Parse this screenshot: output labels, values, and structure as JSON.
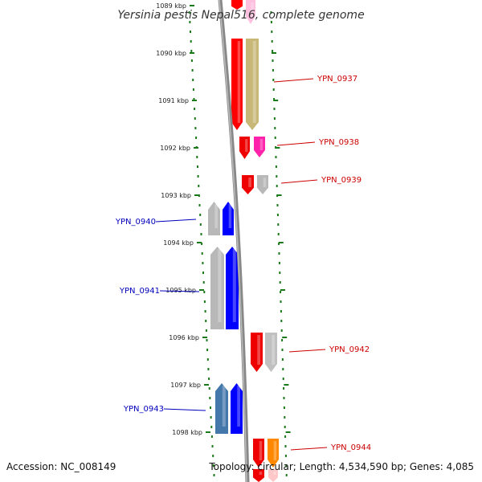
{
  "title": "Yersinia pestis Nepal516, complete genome",
  "footer": {
    "accession": "Accession: NC_008149",
    "topology": "Topology: circular; Length: 4,534,590 bp; Genes: 4,085"
  },
  "colors": {
    "backbone": "#888888",
    "ticks": "#1a7a1a",
    "forward_labels": "#cc0000",
    "reverse_labels": "#0000bb"
  },
  "ticks": [
    {
      "label": "1089 kbp",
      "faded": true
    },
    {
      "label": "1090 kbp"
    },
    {
      "label": "1091 kbp"
    },
    {
      "label": "1092 kbp"
    },
    {
      "label": "1093 kbp"
    },
    {
      "label": "1094 kbp"
    },
    {
      "label": "1095 kbp"
    },
    {
      "label": "1096 kbp"
    },
    {
      "label": "1097 kbp"
    },
    {
      "label": "1098 kbp"
    }
  ],
  "genes": [
    {
      "id": "YPN_0937",
      "strand": "+",
      "labeled": true,
      "colors": [
        "#ff0000",
        "#c8b878"
      ]
    },
    {
      "id": "YPN_0938",
      "strand": "+",
      "labeled": true,
      "colors": [
        "#ee0000",
        "#ff22aa"
      ]
    },
    {
      "id": "YPN_0939",
      "strand": "+",
      "labeled": true,
      "colors": [
        "#ee0000",
        "#b8b8b8"
      ]
    },
    {
      "id": "YPN_0940",
      "strand": "-",
      "labeled": true,
      "colors": [
        "#b8b8b8",
        "#0000ff"
      ]
    },
    {
      "id": "YPN_0941",
      "strand": "-",
      "labeled": true,
      "colors": [
        "#b8b8b8",
        "#0000ff"
      ]
    },
    {
      "id": "YPN_0942",
      "strand": "+",
      "labeled": true,
      "colors": [
        "#ee0000",
        "#c0c0c0"
      ]
    },
    {
      "id": "YPN_0943",
      "strand": "-",
      "labeled": true,
      "colors": [
        "#4477aa",
        "#0000ff"
      ]
    },
    {
      "id": "YPN_0944",
      "strand": "+",
      "labeled": true,
      "colors": [
        "#ee0000",
        "#ff8800"
      ]
    },
    {
      "id": "gene-top-partial",
      "strand": "+",
      "labeled": false,
      "colors": [
        "#ff0000",
        "#ffc0e0"
      ]
    },
    {
      "id": "gene-bottom-partial",
      "strand": "+",
      "labeled": false,
      "colors": [
        "#ee0000",
        "#ffc8c8"
      ]
    }
  ]
}
